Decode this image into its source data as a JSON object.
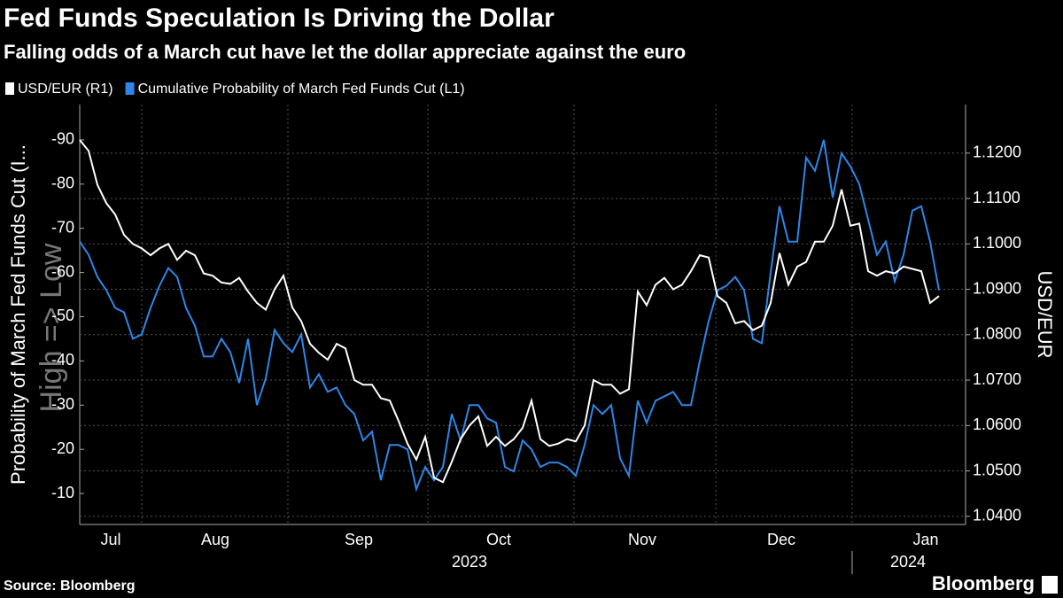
{
  "chart_data": {
    "type": "line",
    "title": "Fed Funds Speculation Is Driving the Dollar",
    "subtitle": "Falling odds of a March cut have let the dollar appreciate against the euro",
    "y_label": "Probability of March Fed Funds Cut (I...",
    "y2_label": "USD/EUR",
    "annotation": "High => Low",
    "x_labels": [
      "Jul",
      "Aug",
      "Sep",
      "Oct",
      "Nov",
      "Dec",
      "Jan"
    ],
    "x_year_labels": [
      "2023",
      "2024"
    ],
    "series": [
      {
        "name": "USD/EUR (R1)",
        "color": "#ffffff",
        "axis": "y2",
        "values": [
          1.1229,
          1.1205,
          1.113,
          1.109,
          1.1065,
          1.102,
          1.1,
          1.099,
          1.0975,
          1.099,
          1.1,
          1.0965,
          1.0985,
          1.0975,
          1.0935,
          1.093,
          1.0915,
          1.0912,
          1.0925,
          1.0895,
          1.087,
          1.0855,
          1.09,
          1.093,
          1.086,
          1.083,
          1.078,
          1.076,
          1.0745,
          1.078,
          1.077,
          1.07,
          1.069,
          1.069,
          1.066,
          1.0655,
          1.061,
          1.056,
          1.0525,
          1.0575,
          1.0485,
          1.0475,
          1.052,
          1.057,
          1.06,
          1.062,
          1.0555,
          1.0575,
          1.0555,
          1.057,
          1.0595,
          1.0655,
          1.057,
          1.0555,
          1.056,
          1.057,
          1.0565,
          1.06,
          1.07,
          1.069,
          1.069,
          1.067,
          1.068,
          1.0895,
          1.0865,
          1.091,
          1.0925,
          1.09,
          1.091,
          1.094,
          1.0975,
          1.097,
          1.0885,
          1.087,
          1.0825,
          1.083,
          1.081,
          1.082,
          1.087,
          1.098,
          1.091,
          1.095,
          1.096,
          1.1005,
          1.1005,
          1.104,
          1.112,
          1.104,
          1.1045,
          1.094,
          1.093,
          1.094,
          1.0935,
          1.095,
          1.0945,
          1.094,
          1.087,
          1.0885
        ]
      },
      {
        "name": "Cumulative Probability of March Fed Funds Cut (L1)",
        "color": "#2f86e8",
        "values": [
          67,
          64,
          59,
          56,
          52,
          51,
          45,
          46,
          52,
          57,
          61,
          59,
          52,
          48,
          41,
          41,
          45,
          42,
          35,
          45,
          30,
          36,
          47,
          44,
          42,
          46,
          34,
          37,
          33,
          34,
          30,
          28,
          22,
          24,
          13,
          21,
          21,
          20,
          11,
          16,
          13,
          16,
          28,
          22,
          30,
          30,
          27,
          26,
          16,
          15,
          22,
          20,
          16,
          17,
          17,
          16,
          14,
          21,
          30,
          28,
          30,
          18,
          14,
          31,
          26,
          31,
          32,
          33,
          30,
          30,
          40,
          49,
          56,
          57,
          59,
          56,
          45,
          44,
          60,
          75,
          67,
          67,
          86,
          83,
          90,
          77,
          87,
          84,
          80,
          72,
          64,
          67,
          58,
          64,
          74,
          75,
          67,
          56
        ]
      }
    ],
    "ylim": [
      3,
      98
    ],
    "yticks": [
      {
        "value": 10,
        "label": "-10"
      },
      {
        "value": 20,
        "label": "-20"
      },
      {
        "value": 30,
        "label": "-30"
      },
      {
        "value": 40,
        "label": "-40"
      },
      {
        "value": 50,
        "label": "-50"
      },
      {
        "value": 60,
        "label": "-60"
      },
      {
        "value": 70,
        "label": "-70"
      },
      {
        "value": 80,
        "label": "-80"
      },
      {
        "value": 90,
        "label": "-90"
      }
    ],
    "y2lim": [
      1.0382,
      1.1307
    ],
    "y2ticks": [
      {
        "value": 1.04,
        "label": "1.0400"
      },
      {
        "value": 1.05,
        "label": "1.0500"
      },
      {
        "value": 1.06,
        "label": "1.0600"
      },
      {
        "value": 1.07,
        "label": "1.0700"
      },
      {
        "value": 1.08,
        "label": "1.0800"
      },
      {
        "value": 1.09,
        "label": "1.0900"
      },
      {
        "value": 1.1,
        "label": "1.1000"
      },
      {
        "value": 1.11,
        "label": "1.1100"
      },
      {
        "value": 1.12,
        "label": "1.1200"
      }
    ],
    "grid": true
  },
  "source": "Source: Bloomberg",
  "brand": "Bloomberg"
}
